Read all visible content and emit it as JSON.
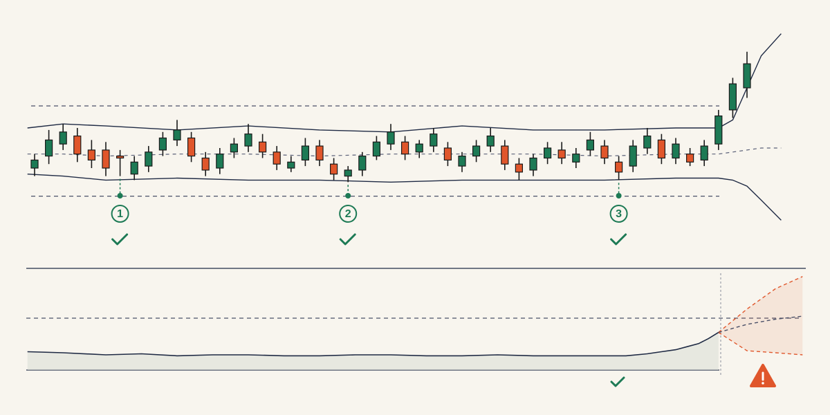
{
  "chart_data": [
    {
      "type": "candlestick",
      "xlim": [
        -2,
        54
      ],
      "ylim": [
        0,
        100
      ],
      "up_color": "#1d7a55",
      "down_color": "#e0562b",
      "x": [
        0,
        1,
        2,
        3,
        4,
        5,
        6,
        7,
        8,
        9,
        10,
        11,
        12,
        13,
        14,
        15,
        16,
        17,
        18,
        19,
        20,
        21,
        22,
        23,
        24,
        25,
        26,
        27,
        28,
        29,
        30,
        31,
        32,
        33,
        34,
        35,
        36,
        37,
        38,
        39,
        40,
        41,
        42,
        43,
        44,
        45,
        46,
        47,
        48,
        49,
        50
      ],
      "open": [
        30,
        36,
        42,
        46,
        39,
        39,
        36,
        27,
        31,
        39,
        44,
        45,
        35,
        30,
        38,
        41,
        43,
        38,
        30,
        34,
        41,
        32,
        26,
        29,
        36,
        42,
        43,
        38,
        41,
        40,
        31,
        36,
        41,
        41,
        32,
        29,
        35,
        39,
        33,
        39,
        41,
        33,
        31,
        40,
        44,
        35,
        37,
        34,
        42,
        59,
        70
      ],
      "high": [
        37,
        49,
        52,
        50,
        44,
        43,
        39,
        36,
        41,
        48,
        54,
        48,
        38,
        40,
        45,
        52,
        47,
        41,
        36,
        45,
        44,
        35,
        31,
        38,
        46,
        52,
        46,
        44,
        50,
        43,
        38,
        44,
        50,
        44,
        35,
        37,
        43,
        43,
        40,
        48,
        44,
        36,
        44,
        50,
        47,
        45,
        40,
        44,
        59,
        75,
        88
      ],
      "low": [
        26,
        32,
        39,
        33,
        30,
        26,
        26,
        24,
        28,
        36,
        41,
        33,
        26,
        27,
        35,
        38,
        35,
        29,
        28,
        31,
        31,
        24,
        23,
        26,
        34,
        39,
        34,
        35,
        38,
        31,
        28,
        33,
        38,
        29,
        24,
        26,
        32,
        32,
        30,
        36,
        32,
        24,
        28,
        37,
        32,
        32,
        31,
        31,
        39,
        55,
        65
      ],
      "close": [
        34,
        44,
        48,
        37,
        34,
        30,
        35,
        33,
        38,
        45,
        49,
        36,
        29,
        37,
        42,
        47,
        38,
        32,
        33,
        41,
        34,
        27,
        29,
        36,
        43,
        48,
        37,
        42,
        47,
        34,
        36,
        41,
        46,
        32,
        28,
        35,
        40,
        35,
        37,
        44,
        35,
        28,
        41,
        46,
        35,
        42,
        33,
        41,
        56,
        72,
        82
      ],
      "upper_band": {
        "x": [
          -0.5,
          2,
          5,
          10,
          15,
          20,
          25,
          30,
          35,
          40,
          45,
          48,
          49,
          50,
          51,
          52.4
        ],
        "values": [
          50,
          52,
          51,
          49,
          51,
          49,
          48,
          51,
          49,
          49,
          50,
          50,
          54,
          70,
          86,
          97
        ]
      },
      "middle_band": {
        "x": [
          -0.5,
          2,
          5,
          10,
          15,
          20,
          25,
          30,
          35,
          40,
          45,
          48,
          49,
          50,
          51,
          52.4
        ],
        "values": [
          37,
          37,
          36,
          37,
          37,
          36,
          37,
          37,
          37,
          36,
          37,
          37,
          38,
          39,
          40,
          40
        ]
      },
      "lower_band": {
        "x": [
          -0.5,
          2,
          5,
          10,
          15,
          20,
          25,
          30,
          35,
          40,
          45,
          48,
          49,
          50,
          51,
          52.4
        ],
        "values": [
          27,
          26,
          24,
          25,
          24,
          24,
          23,
          24,
          24,
          24,
          25,
          25,
          24,
          21,
          14,
          4
        ]
      },
      "levels": [
        61,
        16
      ],
      "markers": [
        {
          "x": 6,
          "label": "1"
        },
        {
          "x": 22,
          "label": "2"
        },
        {
          "x": 41,
          "label": "3"
        }
      ]
    },
    {
      "type": "line",
      "xlim": [
        -2,
        54
      ],
      "ylim": [
        0,
        100
      ],
      "x": [
        -0.5,
        2,
        5,
        7.5,
        10,
        12.5,
        15,
        17.5,
        20,
        22.5,
        25,
        27.5,
        30,
        32.5,
        35,
        37.5,
        40,
        41.5,
        43,
        44,
        45,
        45.8,
        46.6,
        47.3,
        48
      ],
      "values": [
        18,
        17,
        15,
        16,
        14,
        15,
        15,
        14,
        14,
        15,
        15,
        14,
        14,
        15,
        14,
        14,
        14,
        14,
        16,
        18,
        20,
        23,
        26,
        31,
        37
      ],
      "color": "#1f2a44",
      "projection_x": [
        48,
        50,
        52,
        53.9
      ],
      "projection_upper": [
        37,
        60,
        80,
        92
      ],
      "projection_middle": [
        37,
        45,
        50,
        53
      ],
      "projection_lower": [
        37,
        19,
        17,
        15
      ],
      "projection_color": "#e0562b",
      "levels": [
        51
      ]
    }
  ]
}
